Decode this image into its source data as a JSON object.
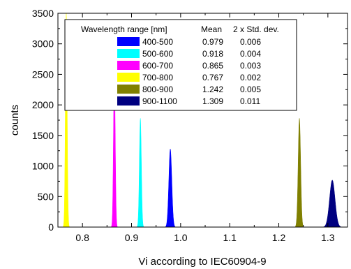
{
  "chart_data": {
    "type": "histogram",
    "xlabel": "Vi according to IEC60904-9",
    "ylabel": "counts",
    "xlim": [
      0.75,
      1.34
    ],
    "ylim": [
      0,
      3500
    ],
    "x_ticks": [
      "0.8",
      "0.9",
      "1.0",
      "1.1",
      "1.2",
      "1.3"
    ],
    "y_ticks": [
      "0",
      "500",
      "1000",
      "1500",
      "2000",
      "2500",
      "3000",
      "3500"
    ],
    "legend": {
      "position": "top-left",
      "header": [
        "Wavelength range [nm]",
        "Mean",
        "2 x Std. dev."
      ]
    },
    "series": [
      {
        "name": "400-500",
        "color": "#0000ff",
        "mean": 0.979,
        "std2": 0.006,
        "mean_label": "0.979",
        "std2_label": "0.006",
        "peak": 1280
      },
      {
        "name": "500-600",
        "color": "#00ffff",
        "mean": 0.918,
        "std2": 0.004,
        "mean_label": "0.918",
        "std2_label": "0.004",
        "peak": 1780
      },
      {
        "name": "600-700",
        "color": "#ff00ff",
        "mean": 0.865,
        "std2": 0.003,
        "mean_label": "0.865",
        "std2_label": "0.003",
        "peak": 2560
      },
      {
        "name": "700-800",
        "color": "#ffff00",
        "mean": 0.767,
        "std2": 0.002,
        "mean_label": "0.767",
        "std2_label": "0.002",
        "peak": 3500
      },
      {
        "name": "800-900",
        "color": "#808000",
        "mean": 1.242,
        "std2": 0.005,
        "mean_label": "1.242",
        "std2_label": "0.005",
        "peak": 1780
      },
      {
        "name": "900-1100",
        "color": "#000080",
        "mean": 1.309,
        "std2": 0.011,
        "mean_label": "1.309",
        "std2_label": "0.011",
        "peak": 770
      }
    ]
  }
}
